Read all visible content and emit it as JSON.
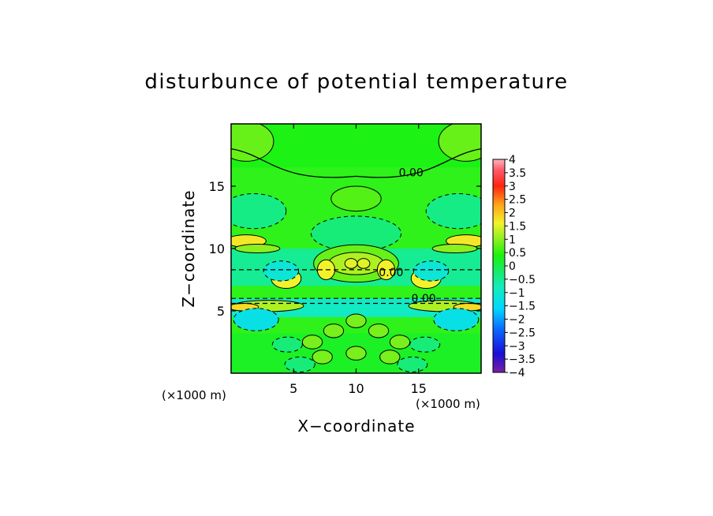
{
  "chart_data": {
    "type": "heatmap",
    "subtype": "filled-contour",
    "title": "disturbunce of potential temperature",
    "xlabel": "X−coordinate",
    "ylabel": "Z−coordinate",
    "x_unit_note": "(×1000 m)",
    "z_unit_note": "(×1000 m)",
    "xlim": [
      0,
      20
    ],
    "ylim": [
      0,
      20
    ],
    "x_ticks": [
      5,
      10,
      15
    ],
    "x_tick_labels": [
      "5",
      "10",
      "15"
    ],
    "y_ticks": [
      5,
      10,
      15
    ],
    "y_tick_labels": [
      "5",
      "10",
      "15"
    ],
    "contour_labels": [
      {
        "text": "0.00",
        "x": 14.4,
        "z": 16.1
      },
      {
        "text": "0.00",
        "x": 15.4,
        "z": 6.0
      },
      {
        "text": "0.00",
        "x": 12.8,
        "z": 8.1
      }
    ],
    "colorbar": {
      "min": -4,
      "max": 4,
      "tick_values": [
        4,
        3.5,
        3,
        2.5,
        2,
        1.5,
        1,
        0.5,
        0,
        -0.5,
        -1,
        -1.5,
        -2,
        -2.5,
        -3,
        -3.5,
        -4
      ],
      "tick_labels": [
        "4",
        "3.5",
        "3",
        "2.5",
        "2",
        "1.5",
        "1",
        "0.5",
        "0",
        "−0.5",
        "−1",
        "−1.5",
        "−2",
        "−2.5",
        "−3",
        "−3.5",
        "−4"
      ],
      "stops": [
        {
          "v": -4,
          "c": "#7b1fa2"
        },
        {
          "v": -3.3,
          "c": "#1a0fd6"
        },
        {
          "v": -2.4,
          "c": "#0a66ff"
        },
        {
          "v": -1.6,
          "c": "#00d8ff"
        },
        {
          "v": -0.8,
          "c": "#14ecbc"
        },
        {
          "v": -0.2,
          "c": "#17ec6a"
        },
        {
          "v": 0.4,
          "c": "#1cf20c"
        },
        {
          "v": 1.0,
          "c": "#8cf020"
        },
        {
          "v": 1.6,
          "c": "#f2f22a"
        },
        {
          "v": 2.3,
          "c": "#ffa31a"
        },
        {
          "v": 3.0,
          "c": "#ff2410"
        },
        {
          "v": 3.6,
          "c": "#ff5a6a"
        },
        {
          "v": 4,
          "c": "#ffb4bc"
        }
      ]
    }
  }
}
